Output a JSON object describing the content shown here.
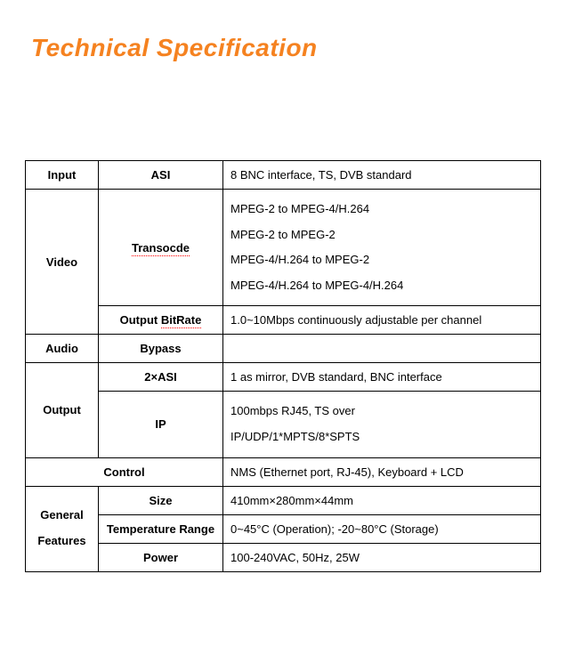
{
  "title": "Technical Specification",
  "table": {
    "input": {
      "label": "Input",
      "sub": "ASI",
      "val": "8 BNC interface, TS, DVB standard"
    },
    "video": {
      "label": "Video",
      "transcode": {
        "label_pre": "Transocde",
        "lines": [
          "MPEG-2 to MPEG-4/H.264",
          "MPEG-2 to MPEG-2",
          "MPEG-4/H.264 to MPEG-2",
          "MPEG-4/H.264 to MPEG-4/H.264"
        ]
      },
      "bitrate": {
        "label_pre": "Output ",
        "label_u": "BitRate",
        "val": "1.0~10Mbps continuously adjustable per channel"
      }
    },
    "audio": {
      "label": "Audio",
      "sub": "Bypass"
    },
    "output": {
      "label": "Output",
      "asi": {
        "label": "2×ASI",
        "val": "1 as mirror, DVB standard, BNC interface"
      },
      "ip": {
        "label": "IP",
        "l1": "100mbps RJ45, TS over",
        "l2": "IP/UDP/1*MPTS/8*SPTS"
      }
    },
    "control": {
      "label": "Control",
      "val": "NMS (Ethernet port, RJ-45), Keyboard + LCD"
    },
    "general": {
      "label_l1": "General",
      "label_l2": "Features",
      "size": {
        "label": "Size",
        "val": "410mm×280mm×44mm"
      },
      "temp": {
        "label": "Temperature Range",
        "val": "0~45°C (Operation); -20~80°C (Storage)"
      },
      "power": {
        "label": "Power",
        "val": "100-240VAC, 50Hz, 25W"
      }
    }
  }
}
